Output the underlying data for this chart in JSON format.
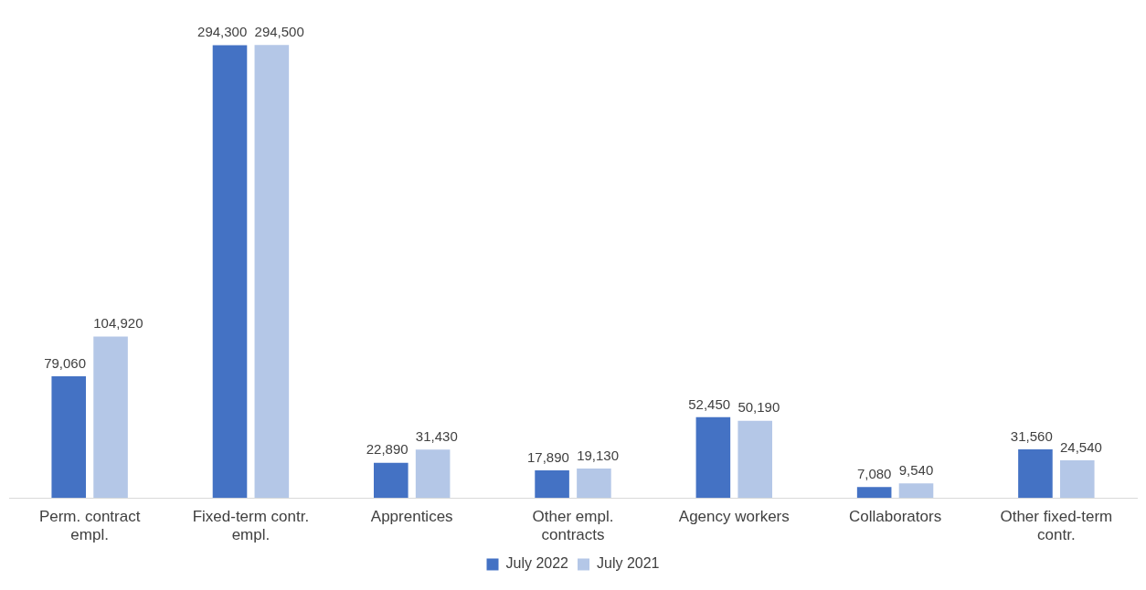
{
  "chart_data": {
    "type": "bar",
    "categories": [
      "Perm. contract empl.",
      "Fixed-term contr. empl.",
      "Apprentices",
      "Other empl. contracts",
      "Agency workers",
      "Collaborators",
      "Other fixed-term contr."
    ],
    "series": [
      {
        "name": "July 2022",
        "color": "#4472c4",
        "values": [
          79060,
          294300,
          22890,
          17890,
          52450,
          7080,
          31560
        ],
        "value_labels": [
          "79,060",
          "294,300",
          "22,890",
          "17,890",
          "52,450",
          "7,080",
          "31,560"
        ]
      },
      {
        "name": "July 2021",
        "color": "#b4c7e7",
        "values": [
          104920,
          294500,
          31430,
          19130,
          50190,
          9540,
          24540
        ],
        "value_labels": [
          "104,920",
          "294,500",
          "31,430",
          "19,130",
          "50,190",
          "9,540",
          "24,540"
        ]
      }
    ],
    "legend": "bottom",
    "grid": false
  }
}
